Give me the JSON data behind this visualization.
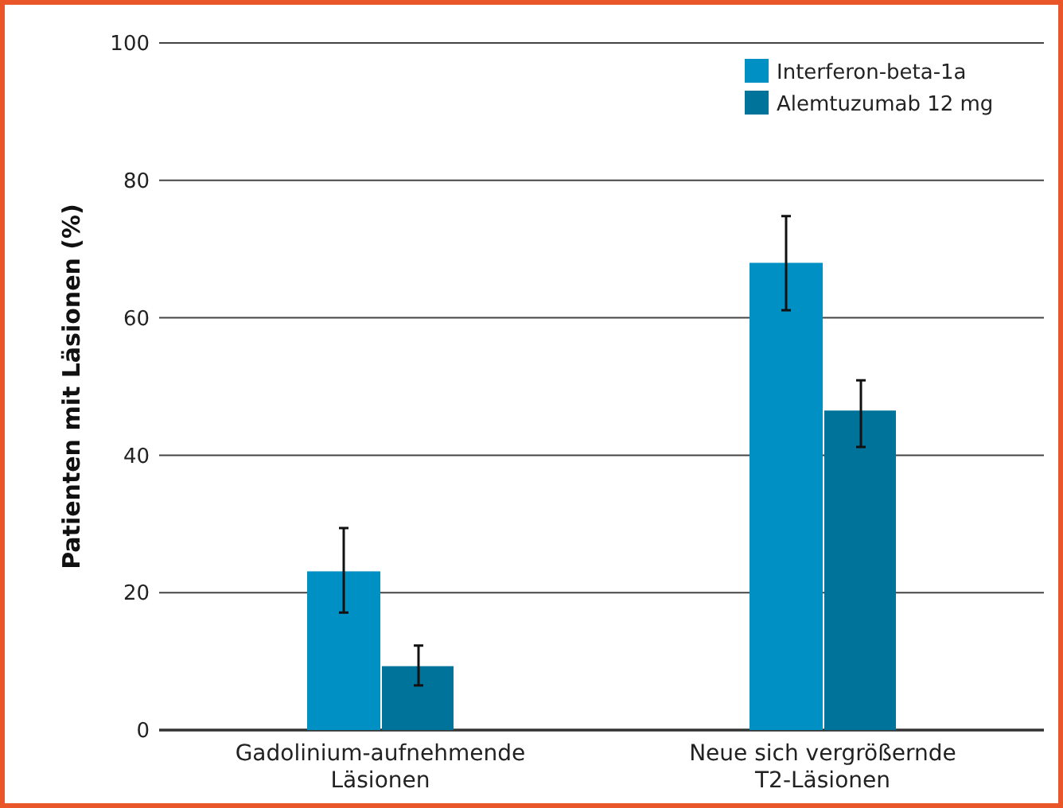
{
  "chart_data": {
    "type": "bar",
    "ylabel": "Patienten mit Läsionen (%)",
    "categories": [
      "Gadolinium-aufnehmende Läsionen",
      "Neue sich vergrößernde T2-Läsionen"
    ],
    "series": [
      {
        "name": "Interferon-beta-1a",
        "color": "#0090c4",
        "values": [
          23.1,
          68
        ],
        "errors": [
          [
            17.1,
            29.4
          ],
          [
            61.1,
            74.8
          ]
        ]
      },
      {
        "name": "Alemtuzumab 12 mg",
        "color": "#00739a",
        "values": [
          9.3,
          46.5
        ],
        "errors": [
          [
            6.5,
            12.3
          ],
          [
            41.2,
            50.9
          ]
        ]
      }
    ],
    "ylim": [
      0,
      100
    ],
    "yticks": [
      0,
      20,
      40,
      60,
      80,
      100
    ],
    "grid": "y",
    "legend": "top right"
  }
}
